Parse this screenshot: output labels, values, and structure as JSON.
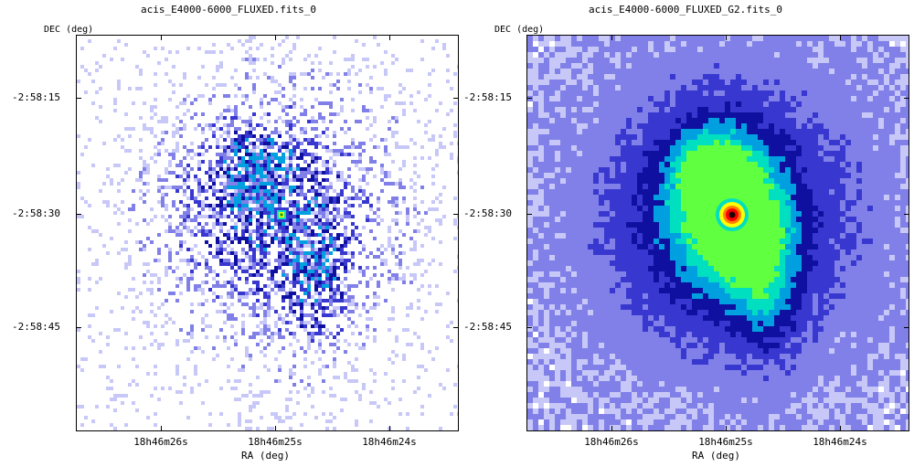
{
  "panels": [
    {
      "title": "acis_E4000-6000_FLUXED.fits_0",
      "ylabel": "DEC (deg)",
      "xlabel": "RA (deg)",
      "ra_ticks": [
        "18h46m26s",
        "18h46m25s",
        "18h46m24s"
      ],
      "dec_ticks": [
        "-2:58:15",
        "-2:58:30",
        "-2:58:45"
      ],
      "image_style": "raw-counts"
    },
    {
      "title": "acis_E4000-6000_FLUXED_G2.fits_0",
      "ylabel": "DEC (deg)",
      "xlabel": "RA (deg)",
      "ra_ticks": [
        "18h46m26s",
        "18h46m25s",
        "18h46m24s"
      ],
      "dec_ticks": [
        "-2:58:15",
        "-2:58:30",
        "-2:58:45"
      ],
      "image_style": "smoothed"
    }
  ],
  "colormap": [
    "#ffffff",
    "#c8c8f8",
    "#8080e8",
    "#3838d0",
    "#1010a0",
    "#00a0e0",
    "#00e0c0",
    "#60ff40",
    "#ffff00",
    "#ff8000",
    "#ff0000",
    "#200000"
  ]
}
